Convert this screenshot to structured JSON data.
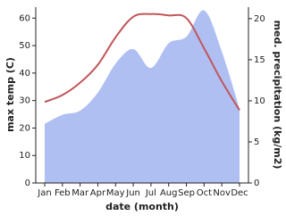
{
  "chart_data": {
    "type": "line",
    "categories": [
      "Jan",
      "Feb",
      "Mar",
      "Apr",
      "May",
      "Jun",
      "Jul",
      "Aug",
      "Sep",
      "Oct",
      "Nov",
      "Dec"
    ],
    "x_label": "date (month)",
    "y_label": "max temp (C)",
    "y2_label": "med. precipitation (kg/m2)",
    "ylim": [
      0,
      64
    ],
    "yticks": [
      0,
      10,
      20,
      30,
      40,
      50,
      60
    ],
    "y2lim": [
      0,
      21.4
    ],
    "y2ticks": [
      0,
      5,
      10,
      15,
      20
    ],
    "series": [
      {
        "name": "med. precipitation",
        "kind": "area",
        "axis": "y2",
        "color": "#b0bff2",
        "values": [
          7.2,
          8.3,
          8.8,
          11,
          14.5,
          16.3,
          14,
          17,
          17.8,
          21,
          16,
          9
        ]
      },
      {
        "name": "max temp",
        "kind": "line",
        "axis": "y",
        "color": "#c0565a",
        "values": [
          29.5,
          32,
          36.5,
          43,
          53,
          60.5,
          61.5,
          61,
          60,
          49,
          37,
          26.5
        ]
      }
    ]
  }
}
